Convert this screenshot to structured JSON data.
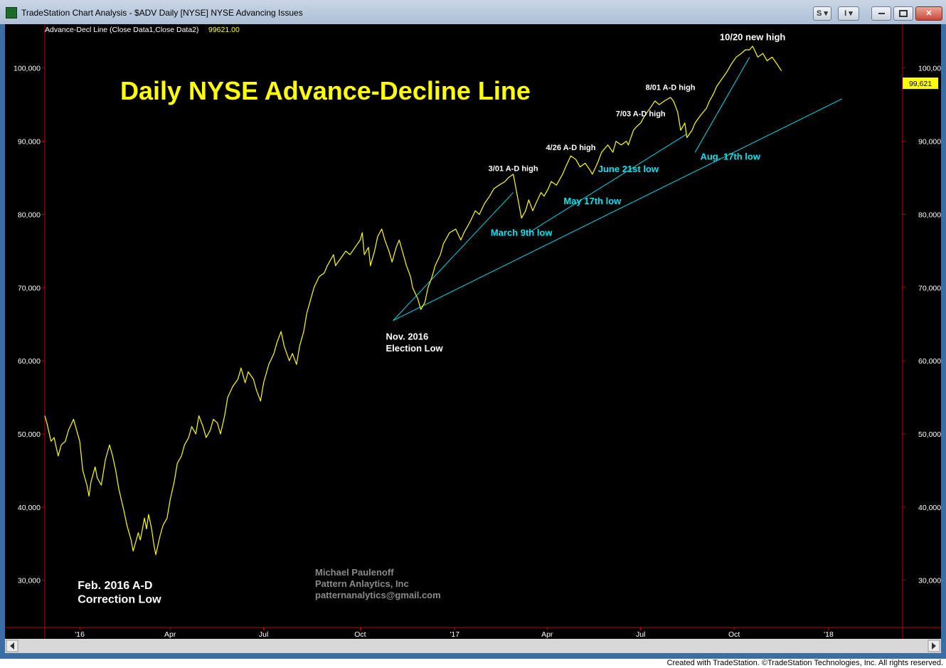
{
  "window": {
    "title": "TradeStation Chart Analysis - $ADV Daily [NYSE] NYSE Advancing Issues",
    "buttons": {
      "s_label": "S ▾",
      "i_label": "I ▾",
      "minimize_icon": "minimize-icon",
      "maximize_icon": "maximize-icon",
      "close_icon": "close-icon"
    }
  },
  "status": {
    "credit": "Created with TradeStation. ©TradeStation Technologies, Inc. All rights reserved."
  },
  "chart_data": {
    "type": "line",
    "title": "Daily NYSE Advance-Decline Line",
    "indicator_label": "Advance-Decl Line (Close Data1,Close Data2)",
    "indicator_value": "99621.00",
    "last_value_label": "99,621",
    "xlabel": "",
    "ylabel": "",
    "ylim": [
      22000,
      106000
    ],
    "yticks": [
      30000,
      40000,
      50000,
      60000,
      70000,
      80000,
      90000,
      100000
    ],
    "ytick_labels": [
      "30,000",
      "40,000",
      "50,000",
      "60,000",
      "70,000",
      "80,000",
      "90,000",
      "100,000"
    ],
    "xticks": [
      {
        "date": "2016-01-04",
        "label": "'16"
      },
      {
        "date": "2016-04-01",
        "label": "Apr"
      },
      {
        "date": "2016-07-01",
        "label": "Jul"
      },
      {
        "date": "2016-10-03",
        "label": "Oct"
      },
      {
        "date": "2017-01-03",
        "label": "'17"
      },
      {
        "date": "2017-04-03",
        "label": "Apr"
      },
      {
        "date": "2017-07-03",
        "label": "Jul"
      },
      {
        "date": "2017-10-02",
        "label": "Oct"
      },
      {
        "date": "2018-01-02",
        "label": "'18"
      }
    ],
    "xlim": [
      "2015-12-01",
      "2018-03-15"
    ],
    "grid": false,
    "colors": {
      "line": "#ffff00",
      "trendline": "#00d8e8",
      "annotation_white": "#ffffff",
      "annotation_cyan": "#00e5ee",
      "watermark": "#8a8a8a",
      "axis": "#c00000"
    },
    "series": [
      {
        "values": [
          [
            "2015-12-01",
            52500
          ],
          [
            "2015-12-03",
            51500
          ],
          [
            "2015-12-07",
            49000
          ],
          [
            "2015-12-10",
            49500
          ],
          [
            "2015-12-14",
            47000
          ],
          [
            "2015-12-17",
            48500
          ],
          [
            "2015-12-21",
            49000
          ],
          [
            "2015-12-24",
            50500
          ],
          [
            "2015-12-29",
            52000
          ],
          [
            "2016-01-04",
            49000
          ],
          [
            "2016-01-07",
            45000
          ],
          [
            "2016-01-11",
            43000
          ],
          [
            "2016-01-13",
            41500
          ],
          [
            "2016-01-15",
            43500
          ],
          [
            "2016-01-19",
            45500
          ],
          [
            "2016-01-21",
            44000
          ],
          [
            "2016-01-25",
            43000
          ],
          [
            "2016-01-29",
            46500
          ],
          [
            "2016-02-02",
            48500
          ],
          [
            "2016-02-05",
            47000
          ],
          [
            "2016-02-08",
            45000
          ],
          [
            "2016-02-11",
            42500
          ],
          [
            "2016-02-16",
            39500
          ],
          [
            "2016-02-19",
            37500
          ],
          [
            "2016-02-23",
            35500
          ],
          [
            "2016-02-25",
            34000
          ],
          [
            "2016-03-01",
            36500
          ],
          [
            "2016-03-03",
            35500
          ],
          [
            "2016-03-07",
            38500
          ],
          [
            "2016-03-09",
            37000
          ],
          [
            "2016-03-11",
            39000
          ],
          [
            "2016-03-14",
            37000
          ],
          [
            "2016-03-16",
            35000
          ],
          [
            "2016-03-18",
            33500
          ],
          [
            "2016-03-22",
            36000
          ],
          [
            "2016-03-25",
            37500
          ],
          [
            "2016-03-29",
            38500
          ],
          [
            "2016-04-01",
            41000
          ],
          [
            "2016-04-05",
            43500
          ],
          [
            "2016-04-08",
            46000
          ],
          [
            "2016-04-12",
            47000
          ],
          [
            "2016-04-15",
            48500
          ],
          [
            "2016-04-19",
            49500
          ],
          [
            "2016-04-22",
            51000
          ],
          [
            "2016-04-26",
            50000
          ],
          [
            "2016-04-29",
            52500
          ],
          [
            "2016-05-03",
            51000
          ],
          [
            "2016-05-06",
            49500
          ],
          [
            "2016-05-10",
            50500
          ],
          [
            "2016-05-13",
            52000
          ],
          [
            "2016-05-17",
            51500
          ],
          [
            "2016-05-20",
            50000
          ],
          [
            "2016-05-24",
            52500
          ],
          [
            "2016-05-27",
            55000
          ],
          [
            "2016-06-01",
            56500
          ],
          [
            "2016-06-06",
            57500
          ],
          [
            "2016-06-09",
            59000
          ],
          [
            "2016-06-13",
            57000
          ],
          [
            "2016-06-16",
            58500
          ],
          [
            "2016-06-21",
            57500
          ],
          [
            "2016-06-24",
            56000
          ],
          [
            "2016-06-28",
            54500
          ],
          [
            "2016-07-01",
            57000
          ],
          [
            "2016-07-06",
            59500
          ],
          [
            "2016-07-11",
            61000
          ],
          [
            "2016-07-14",
            62500
          ],
          [
            "2016-07-18",
            64000
          ],
          [
            "2016-07-21",
            62000
          ],
          [
            "2016-07-26",
            60000
          ],
          [
            "2016-07-29",
            61000
          ],
          [
            "2016-08-02",
            59500
          ],
          [
            "2016-08-05",
            62000
          ],
          [
            "2016-08-09",
            64000
          ],
          [
            "2016-08-12",
            66500
          ],
          [
            "2016-08-16",
            68500
          ],
          [
            "2016-08-19",
            70000
          ],
          [
            "2016-08-24",
            71500
          ],
          [
            "2016-08-29",
            72000
          ],
          [
            "2016-09-01",
            73000
          ],
          [
            "2016-09-07",
            74500
          ],
          [
            "2016-09-09",
            73000
          ],
          [
            "2016-09-14",
            74000
          ],
          [
            "2016-09-19",
            75000
          ],
          [
            "2016-09-23",
            74500
          ],
          [
            "2016-09-28",
            75500
          ],
          [
            "2016-10-03",
            76500
          ],
          [
            "2016-10-05",
            77500
          ],
          [
            "2016-10-07",
            74500
          ],
          [
            "2016-10-11",
            75500
          ],
          [
            "2016-10-13",
            73000
          ],
          [
            "2016-10-17",
            75000
          ],
          [
            "2016-10-20",
            77000
          ],
          [
            "2016-10-24",
            78000
          ],
          [
            "2016-10-27",
            76500
          ],
          [
            "2016-10-31",
            75000
          ],
          [
            "2016-11-03",
            73500
          ],
          [
            "2016-11-07",
            75500
          ],
          [
            "2016-11-10",
            76500
          ],
          [
            "2016-11-14",
            74500
          ],
          [
            "2016-11-17",
            73000
          ],
          [
            "2016-11-21",
            71500
          ],
          [
            "2016-11-23",
            70000
          ],
          [
            "2016-11-28",
            68500
          ],
          [
            "2016-12-01",
            67000
          ],
          [
            "2016-12-05",
            68000
          ],
          [
            "2016-12-08",
            70000
          ],
          [
            "2016-12-12",
            71500
          ],
          [
            "2016-12-15",
            73000
          ],
          [
            "2016-12-20",
            74500
          ],
          [
            "2016-12-23",
            76000
          ],
          [
            "2016-12-29",
            77500
          ],
          [
            "2017-01-04",
            78000
          ],
          [
            "2017-01-09",
            76500
          ],
          [
            "2017-01-12",
            77500
          ],
          [
            "2017-01-18",
            79000
          ],
          [
            "2017-01-23",
            80500
          ],
          [
            "2017-01-27",
            80000
          ],
          [
            "2017-02-01",
            81500
          ],
          [
            "2017-02-06",
            82500
          ],
          [
            "2017-02-10",
            83500
          ],
          [
            "2017-02-15",
            84000
          ],
          [
            "2017-02-21",
            84500
          ],
          [
            "2017-02-24",
            85000
          ],
          [
            "2017-03-01",
            85500
          ],
          [
            "2017-03-03",
            84000
          ],
          [
            "2017-03-07",
            81000
          ],
          [
            "2017-03-09",
            79500
          ],
          [
            "2017-03-13",
            80500
          ],
          [
            "2017-03-16",
            82000
          ],
          [
            "2017-03-20",
            80500
          ],
          [
            "2017-03-23",
            81500
          ],
          [
            "2017-03-28",
            83000
          ],
          [
            "2017-03-31",
            82500
          ],
          [
            "2017-04-04",
            83500
          ],
          [
            "2017-04-07",
            84500
          ],
          [
            "2017-04-12",
            84000
          ],
          [
            "2017-04-18",
            85500
          ],
          [
            "2017-04-21",
            86500
          ],
          [
            "2017-04-26",
            88000
          ],
          [
            "2017-05-01",
            87500
          ],
          [
            "2017-05-05",
            86500
          ],
          [
            "2017-05-10",
            87000
          ],
          [
            "2017-05-15",
            86000
          ],
          [
            "2017-05-17",
            85500
          ],
          [
            "2017-05-22",
            87000
          ],
          [
            "2017-05-26",
            88500
          ],
          [
            "2017-06-01",
            89500
          ],
          [
            "2017-06-06",
            88500
          ],
          [
            "2017-06-09",
            90000
          ],
          [
            "2017-06-14",
            89500
          ],
          [
            "2017-06-19",
            90000
          ],
          [
            "2017-06-21",
            89500
          ],
          [
            "2017-06-26",
            91500
          ],
          [
            "2017-06-29",
            92000
          ],
          [
            "2017-07-03",
            92500
          ],
          [
            "2017-07-07",
            93500
          ],
          [
            "2017-07-12",
            94500
          ],
          [
            "2017-07-17",
            95500
          ],
          [
            "2017-07-21",
            95000
          ],
          [
            "2017-07-26",
            95500
          ],
          [
            "2017-08-01",
            96000
          ],
          [
            "2017-08-04",
            95500
          ],
          [
            "2017-08-08",
            94000
          ],
          [
            "2017-08-11",
            91500
          ],
          [
            "2017-08-15",
            92500
          ],
          [
            "2017-08-17",
            90500
          ],
          [
            "2017-08-22",
            91500
          ],
          [
            "2017-08-25",
            92500
          ],
          [
            "2017-08-30",
            93500
          ],
          [
            "2017-09-05",
            94500
          ],
          [
            "2017-09-08",
            95500
          ],
          [
            "2017-09-12",
            96500
          ],
          [
            "2017-09-15",
            97500
          ],
          [
            "2017-09-20",
            98500
          ],
          [
            "2017-09-25",
            99500
          ],
          [
            "2017-09-29",
            100500
          ],
          [
            "2017-10-04",
            101500
          ],
          [
            "2017-10-09",
            102000
          ],
          [
            "2017-10-13",
            102500
          ],
          [
            "2017-10-17",
            102500
          ],
          [
            "2017-10-20",
            103000
          ],
          [
            "2017-10-25",
            101500
          ],
          [
            "2017-10-30",
            102000
          ],
          [
            "2017-11-03",
            101000
          ],
          [
            "2017-11-08",
            101500
          ],
          [
            "2017-11-13",
            100500
          ],
          [
            "2017-11-17",
            99621
          ]
        ]
      }
    ],
    "trendlines": [
      {
        "from": [
          "2016-11-04",
          65500
        ],
        "to": [
          "2017-03-01",
          83000
        ]
      },
      {
        "from": [
          "2016-11-04",
          65500
        ],
        "to": [
          "2018-01-15",
          95800
        ]
      },
      {
        "from": [
          "2017-03-16",
          77500
        ],
        "to": [
          "2017-08-17",
          91000
        ]
      },
      {
        "from": [
          "2017-08-25",
          88500
        ],
        "to": [
          "2017-10-17",
          101500
        ]
      }
    ],
    "annotations": [
      {
        "text": "10/20 new high",
        "date": "2017-10-20",
        "value": 103800,
        "color": "white",
        "size": "small"
      },
      {
        "text": "8/01 A-D high",
        "date": "2017-08-01",
        "value": 97000,
        "color": "white",
        "size": "xsmall"
      },
      {
        "text": "7/03 A-D high",
        "date": "2017-07-03",
        "value": 93400,
        "color": "white",
        "size": "xsmall"
      },
      {
        "text": "4/26 A-D high",
        "date": "2017-04-26",
        "value": 88800,
        "color": "white",
        "size": "xsmall"
      },
      {
        "text": "3/01 A-D high",
        "date": "2017-03-01",
        "value": 85900,
        "color": "white",
        "size": "xsmall"
      },
      {
        "text": "Aug. 17th low",
        "date": "2017-08-30",
        "value": 87500,
        "color": "cyan",
        "size": "small",
        "anchor": "start"
      },
      {
        "text": "June 21st low",
        "date": "2017-06-21",
        "value": 85800,
        "color": "cyan",
        "size": "small"
      },
      {
        "text": "May 17th low",
        "date": "2017-05-17",
        "value": 81400,
        "color": "cyan",
        "size": "small"
      },
      {
        "text": "March 9th low",
        "date": "2017-03-09",
        "value": 77100,
        "color": "cyan",
        "size": "small"
      },
      {
        "text": "Nov. 2016",
        "date": "2016-10-28",
        "value": 62900,
        "color": "white",
        "size": "small",
        "anchor": "start"
      },
      {
        "text": "Election Low",
        "date": "2016-10-28",
        "value": 61300,
        "color": "white",
        "size": "small",
        "anchor": "start"
      },
      {
        "text": "Feb. 2016 A-D",
        "date": "2016-01-02",
        "value": 28800,
        "color": "white",
        "size": "medium",
        "anchor": "start"
      },
      {
        "text": "Correction Low",
        "date": "2016-01-02",
        "value": 26900,
        "color": "white",
        "size": "medium",
        "anchor": "start"
      }
    ],
    "watermark": [
      "Michael Paulenoff",
      "Pattern Anlaytics, Inc",
      "patternanalytics@gmail.com"
    ]
  }
}
